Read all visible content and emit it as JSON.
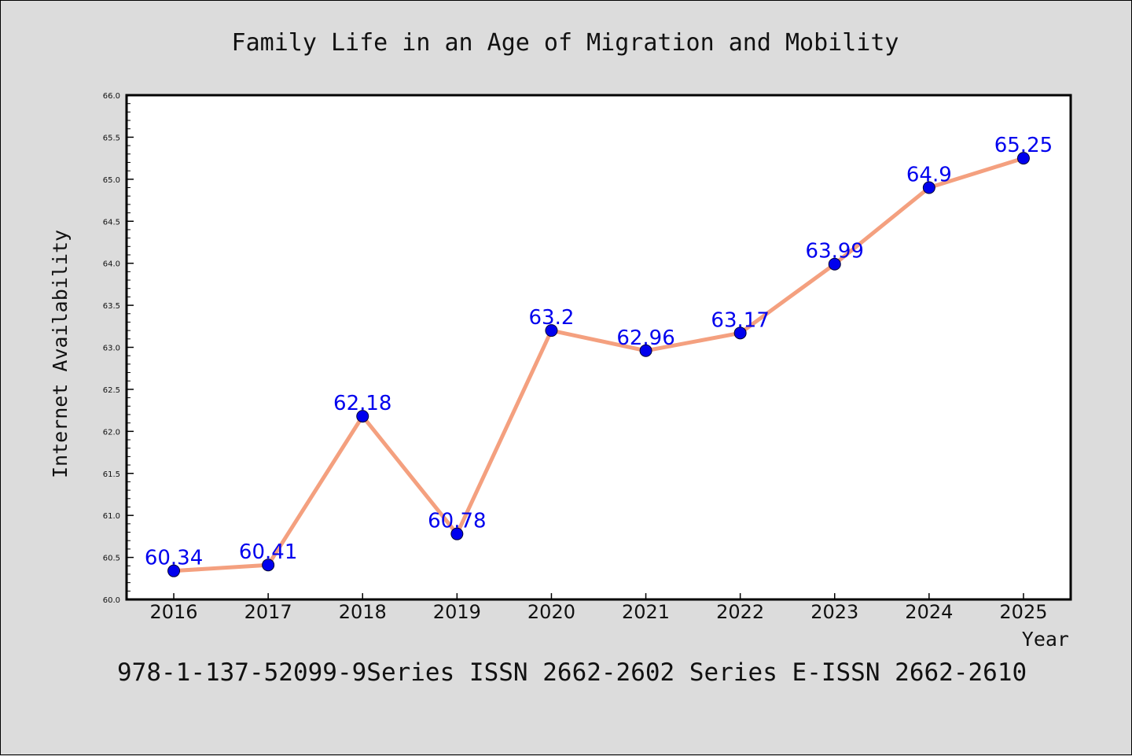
{
  "chart_data": {
    "type": "line",
    "title": "Family Life in an Age of Migration and Mobility",
    "xlabel": "Year",
    "ylabel": "Internet Availability",
    "categories": [
      "2016",
      "2017",
      "2018",
      "2019",
      "2020",
      "2021",
      "2022",
      "2023",
      "2024",
      "2025"
    ],
    "series": [
      {
        "values": [
          60.34,
          60.41,
          62.18,
          60.78,
          63.2,
          62.96,
          63.17,
          63.99,
          64.9,
          65.25
        ]
      }
    ],
    "data_labels": [
      "60.34",
      "60.41",
      "62.18",
      "60.78",
      "63.2",
      "62.96",
      "63.17",
      "63.99",
      "64.9",
      "65.25"
    ],
    "ylim": [
      60.0,
      66.0
    ],
    "yticks": [
      "60.0",
      "60.5",
      "61.0",
      "61.5",
      "62.0",
      "62.5",
      "63.0",
      "63.5",
      "64.0",
      "64.5",
      "65.0",
      "65.5",
      "66.0"
    ],
    "grid": false,
    "legend": "none",
    "line_color": "#f4a07f",
    "marker_color": "#0000ee",
    "label_color": "#0000ee"
  },
  "footer": "978-1-137-52099-9Series ISSN 2662-2602 Series E-ISSN 2662-2610"
}
